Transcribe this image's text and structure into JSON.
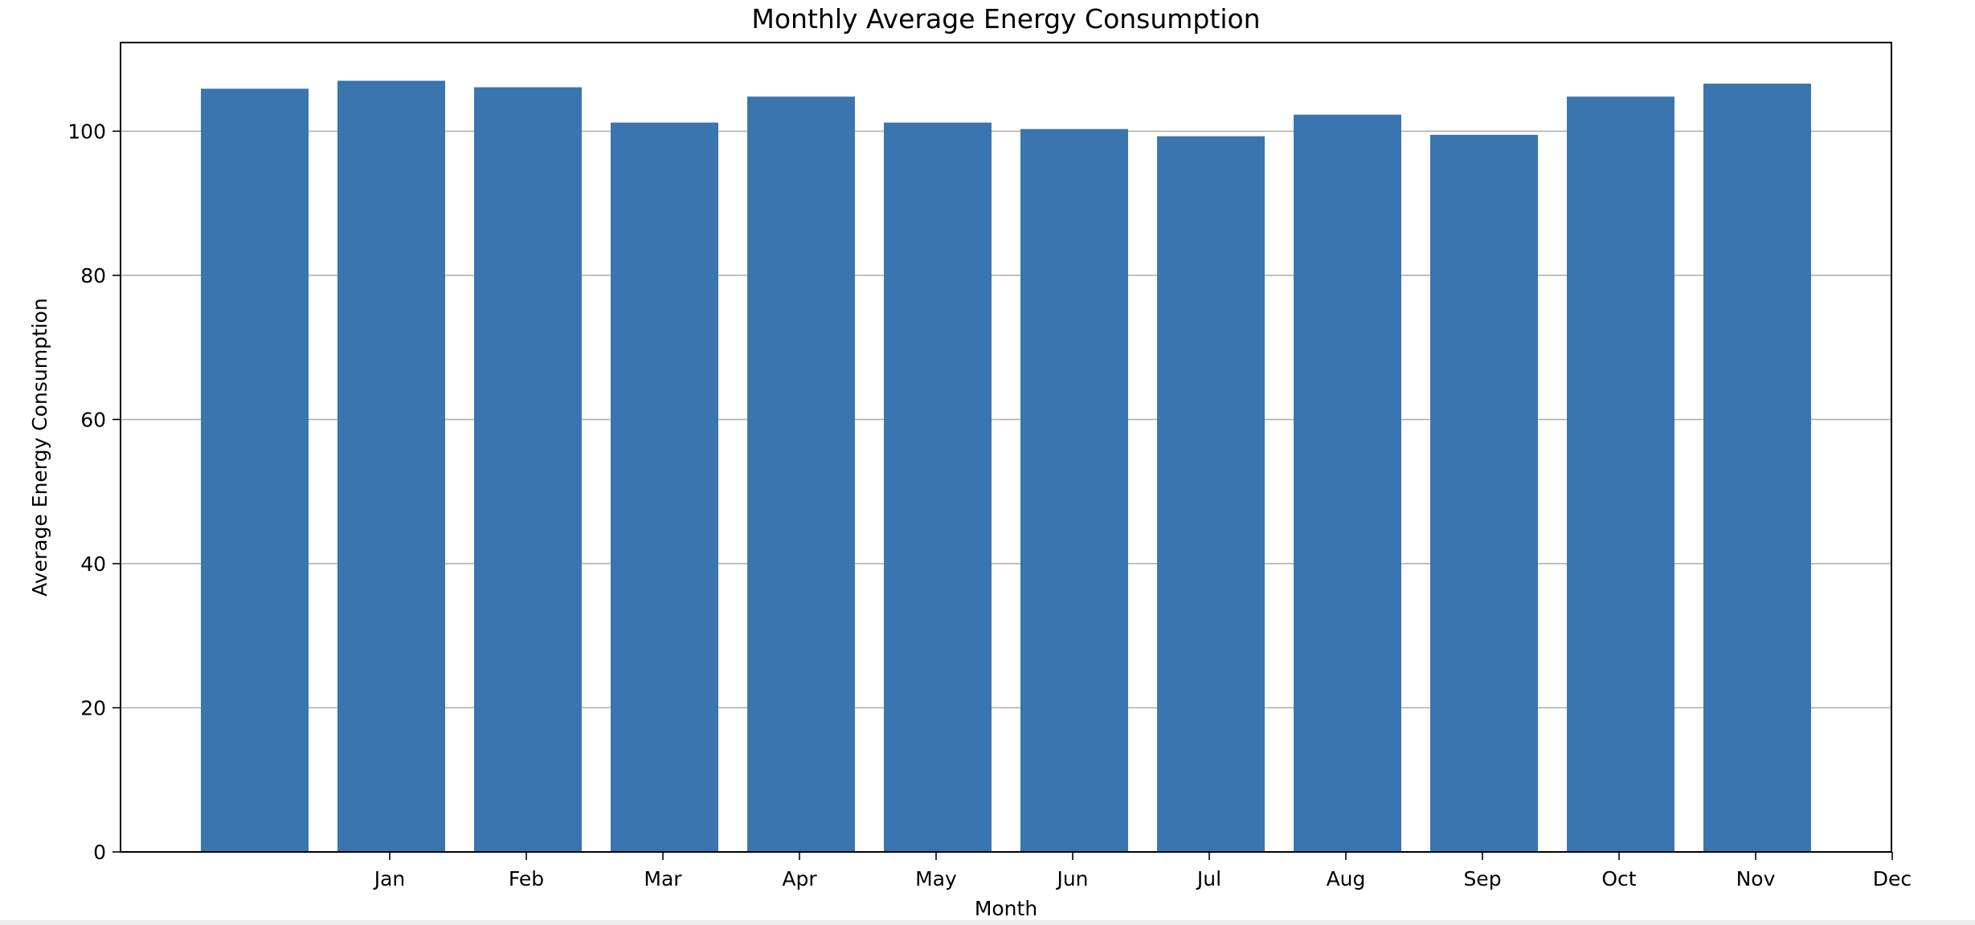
{
  "chart_data": {
    "type": "bar",
    "title": "Monthly Average Energy Consumption",
    "xlabel": "Month",
    "ylabel": "Average Energy Consumption",
    "values": [
      105.9,
      107.0,
      106.1,
      101.2,
      104.8,
      101.2,
      100.3,
      99.3,
      102.3,
      99.5,
      104.8,
      106.6
    ],
    "xticks": [
      "Jan",
      "Feb",
      "Mar",
      "Apr",
      "May",
      "Jun",
      "Jul",
      "Aug",
      "Sep",
      "Oct",
      "Nov",
      "Dec"
    ],
    "yticks": [
      0,
      20,
      40,
      60,
      80,
      100
    ],
    "ylim": [
      0,
      112.3
    ],
    "grid": "horizontal",
    "bar_color": "#3b75af"
  }
}
